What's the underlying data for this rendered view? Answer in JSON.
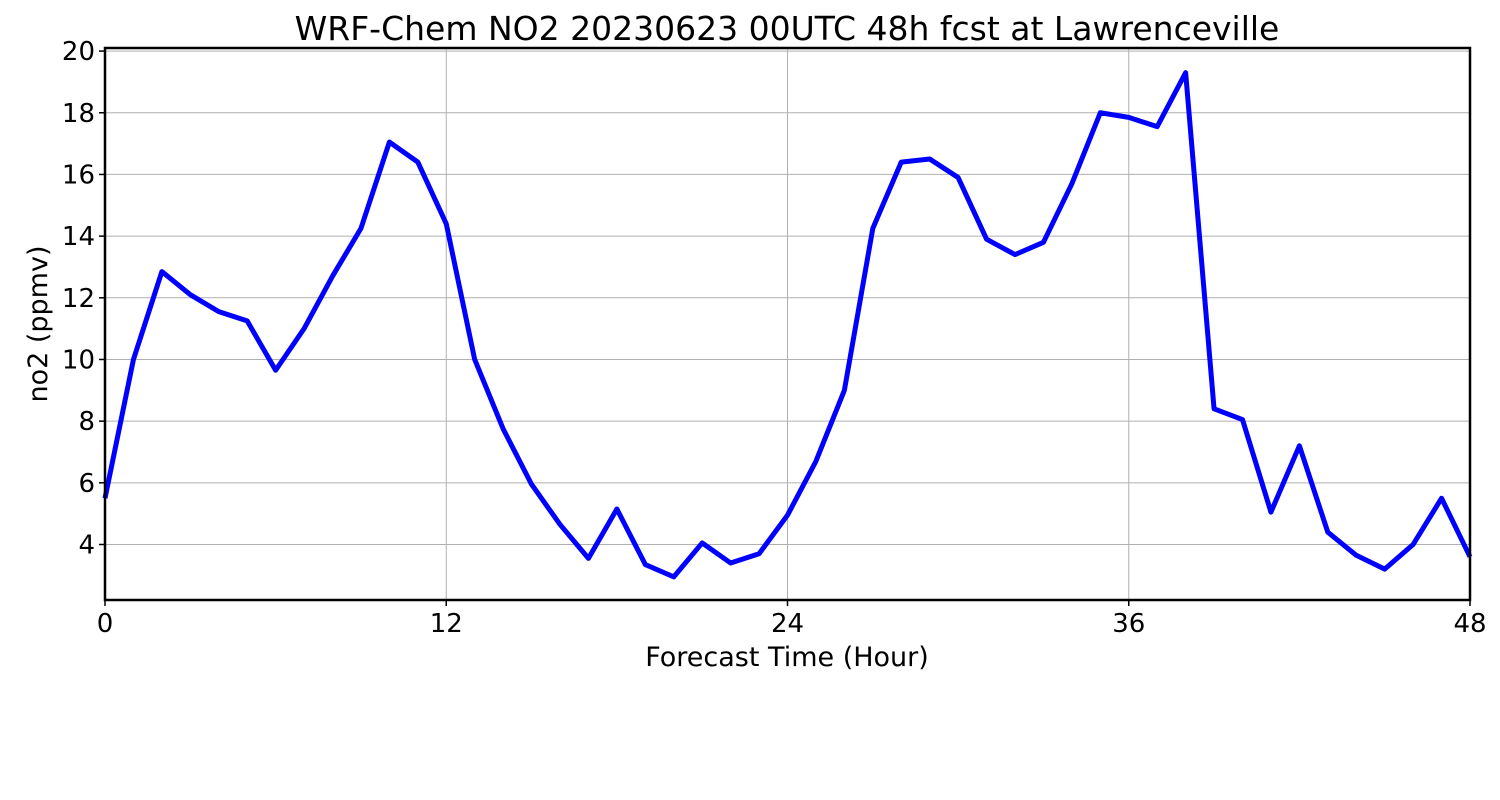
{
  "chart_data": {
    "type": "line",
    "title": "WRF-Chem NO2  20230623 00UTC 48h fcst at Lawrenceville",
    "xlabel": "Forecast Time (Hour)",
    "ylabel": "no2  (ppmv)",
    "xlim": [
      0,
      48
    ],
    "ylim": [
      2.2,
      20.1
    ],
    "xticks": [
      0,
      12,
      24,
      36,
      48
    ],
    "yticks": [
      4,
      6,
      8,
      10,
      12,
      14,
      16,
      18,
      20
    ],
    "grid": true,
    "series": [
      {
        "color": "#0000ff",
        "x": [
          0,
          1,
          2,
          3,
          4,
          5,
          6,
          7,
          8,
          9,
          10,
          11,
          12,
          13,
          14,
          15,
          16,
          17,
          18,
          19,
          20,
          21,
          22,
          23,
          24,
          25,
          26,
          27,
          28,
          29,
          30,
          31,
          32,
          33,
          34,
          35,
          36,
          37,
          38,
          39,
          40,
          41,
          42,
          43,
          44,
          45,
          46,
          47,
          48
        ],
        "values": [
          5.5,
          10.0,
          12.85,
          12.1,
          11.55,
          11.25,
          9.65,
          11.0,
          12.7,
          14.25,
          17.05,
          16.4,
          14.4,
          10.0,
          7.75,
          5.95,
          4.65,
          3.55,
          5.15,
          3.35,
          2.95,
          4.05,
          3.4,
          3.7,
          4.95,
          6.7,
          9.0,
          14.25,
          16.4,
          16.5,
          15.9,
          13.9,
          13.4,
          13.8,
          15.7,
          18.0,
          17.85,
          17.55,
          19.3,
          8.4,
          8.05,
          5.05,
          7.2,
          4.4,
          3.65,
          3.2,
          4.0,
          5.5,
          3.6
        ]
      }
    ]
  }
}
